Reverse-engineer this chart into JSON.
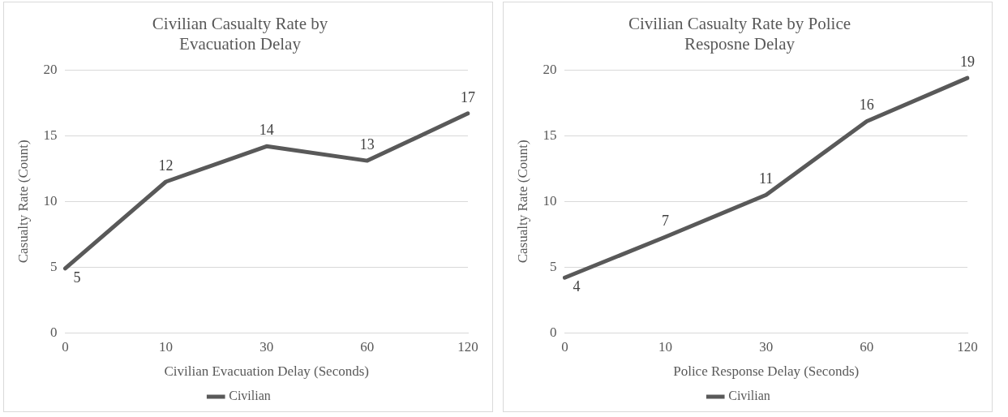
{
  "chart_data": [
    {
      "type": "line",
      "title": "Civilian Casualty Rate by Evacuation Delay",
      "xlabel": "Civilian Evacuation Delay (Seconds)",
      "ylabel": "Casualty Rate (Count)",
      "categories": [
        "0",
        "10",
        "30",
        "60",
        "120"
      ],
      "series": [
        {
          "name": "Civilian",
          "color": "#595959",
          "values": [
            4.9,
            11.5,
            14.2,
            13.1,
            16.7
          ],
          "value_labels": [
            "5",
            "12",
            "14",
            "13",
            "17"
          ]
        }
      ],
      "ylim": [
        0,
        20
      ],
      "yticks": [
        0,
        5,
        10,
        15,
        20
      ],
      "grid": "y",
      "legend": "bottom",
      "marker": "none",
      "line_style": "solid"
    },
    {
      "type": "line",
      "title": "Civilian Casualty Rate by Police Resposne Delay",
      "xlabel": "Police Response Delay (Seconds)",
      "ylabel": "Casualty Rate (Count)",
      "categories": [
        "0",
        "10",
        "30",
        "60",
        "120"
      ],
      "series": [
        {
          "name": "Civilian",
          "color": "#595959",
          "values": [
            4.2,
            7.3,
            10.5,
            16.1,
            19.4
          ],
          "value_labels": [
            "4",
            "7",
            "11",
            "16",
            "19"
          ]
        }
      ],
      "ylim": [
        0,
        20
      ],
      "yticks": [
        0,
        5,
        10,
        15,
        20
      ],
      "grid": "y",
      "legend": "bottom",
      "marker": "none",
      "line_style": "solid"
    }
  ]
}
